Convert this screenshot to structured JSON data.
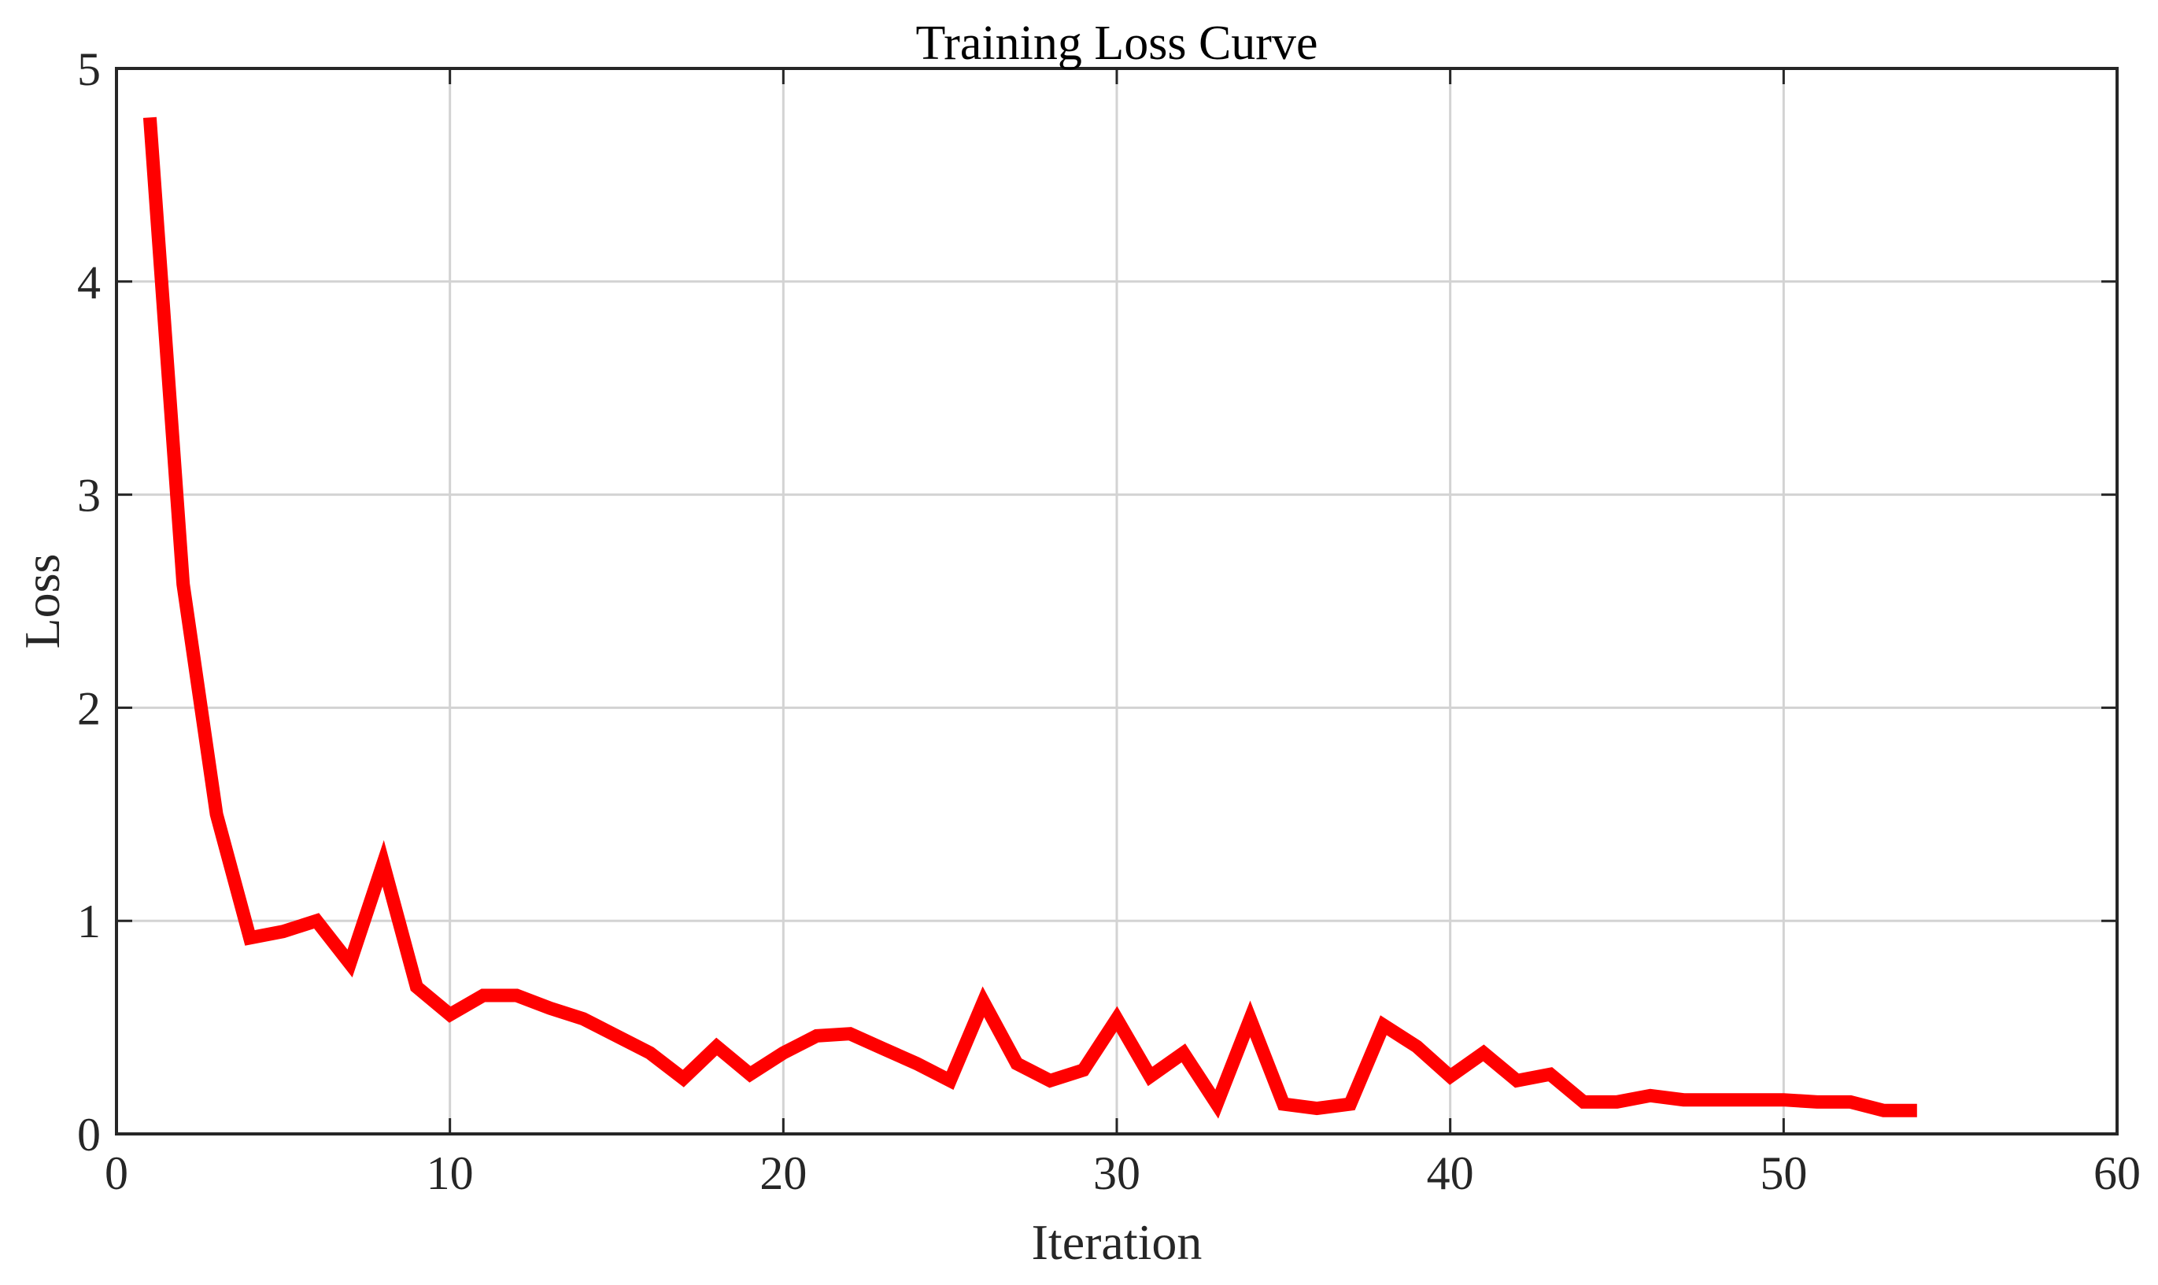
{
  "chart_data": {
    "type": "line",
    "title": "Training Loss Curve",
    "xlabel": "Iteration",
    "ylabel": "Loss",
    "xlim": [
      0,
      60
    ],
    "ylim": [
      0,
      5
    ],
    "xticks": [
      0,
      10,
      20,
      30,
      40,
      50,
      60
    ],
    "yticks": [
      0,
      1,
      2,
      3,
      4,
      5
    ],
    "xtick_labels": [
      "0",
      "10",
      "20",
      "30",
      "40",
      "50",
      "60"
    ],
    "ytick_labels": [
      "0",
      "1",
      "2",
      "3",
      "4",
      "5"
    ],
    "grid": true,
    "series": [
      {
        "color": "#ff0000",
        "x": [
          1,
          2,
          3,
          4,
          5,
          6,
          7,
          8,
          9,
          10,
          11,
          12,
          13,
          14,
          15,
          16,
          17,
          18,
          19,
          20,
          21,
          22,
          23,
          24,
          25,
          26,
          27,
          28,
          29,
          30,
          31,
          32,
          33,
          34,
          35,
          36,
          37,
          38,
          39,
          40,
          41,
          42,
          43,
          44,
          45,
          46,
          47,
          48,
          49,
          50,
          51,
          52,
          53,
          54
        ],
        "y": [
          4.77,
          2.58,
          1.5,
          0.92,
          0.95,
          1.0,
          0.8,
          1.27,
          0.69,
          0.56,
          0.65,
          0.65,
          0.59,
          0.54,
          0.46,
          0.38,
          0.26,
          0.41,
          0.28,
          0.38,
          0.46,
          0.47,
          0.4,
          0.33,
          0.25,
          0.62,
          0.33,
          0.25,
          0.3,
          0.54,
          0.27,
          0.38,
          0.14,
          0.54,
          0.14,
          0.12,
          0.14,
          0.51,
          0.41,
          0.27,
          0.38,
          0.25,
          0.28,
          0.15,
          0.15,
          0.18,
          0.16,
          0.16,
          0.16,
          0.16,
          0.15,
          0.15,
          0.11,
          0.11
        ]
      }
    ]
  }
}
